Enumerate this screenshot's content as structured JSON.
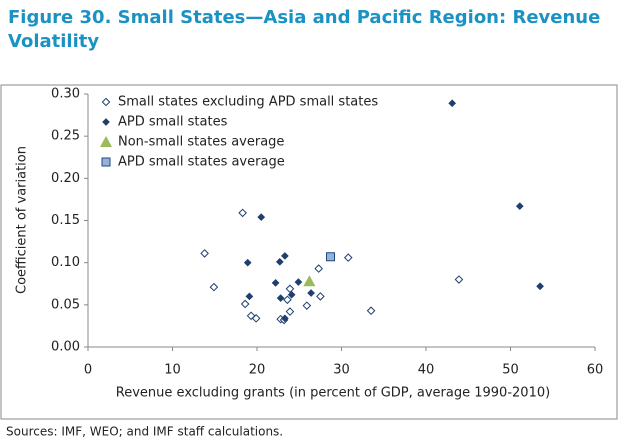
{
  "chart_data": {
    "type": "scatter",
    "title": "Figure 30. Small States—Asia and Pacific Region: Revenue Volatility",
    "x_label": "Revenue excluding grants (in percent of GDP, average 1990-2010)",
    "y_label": "Coefficient of variation",
    "xlim": [
      0,
      60
    ],
    "xticks": [
      0,
      10,
      20,
      30,
      40,
      50,
      60
    ],
    "ylim": [
      0,
      0.3
    ],
    "yticks": [
      {
        "value": 0,
        "label": "0.00"
      },
      {
        "value": 0.05,
        "label": "0.05"
      },
      {
        "value": 0.1,
        "label": "0.10"
      },
      {
        "value": 0.15,
        "label": "0.15"
      },
      {
        "value": 0.2,
        "label": "0.20"
      },
      {
        "value": 0.25,
        "label": "0.25"
      },
      {
        "value": 0.3,
        "label": "0.30"
      }
    ],
    "legend": "upper-left",
    "series": [
      {
        "name": "Small states excluding APD small states",
        "color": "#1f3f6e",
        "marker": "diamond-open",
        "x": [
          13.8,
          14.9,
          18.3,
          18.6,
          19.3,
          19.9,
          22.8,
          23.2,
          23.6,
          23.9,
          23.9,
          25.9,
          27.3,
          27.5,
          30.8,
          33.5,
          43.9
        ],
        "values": [
          0.111,
          0.071,
          0.159,
          0.051,
          0.037,
          0.034,
          0.033,
          0.032,
          0.056,
          0.042,
          0.069,
          0.049,
          0.093,
          0.06,
          0.106,
          0.043,
          0.08
        ]
      },
      {
        "name": "APD small states",
        "color": "#1f3f6e",
        "marker": "diamond",
        "x": [
          43.1,
          51.1,
          53.5,
          20.5,
          18.9,
          19.1,
          22.2,
          22.7,
          23.3,
          22.8,
          23.3,
          24.1,
          24.9,
          26.4
        ],
        "values": [
          0.289,
          0.167,
          0.072,
          0.154,
          0.1,
          0.06,
          0.076,
          0.101,
          0.108,
          0.058,
          0.034,
          0.062,
          0.077,
          0.064
        ]
      },
      {
        "name": "Non-small states average",
        "color": "#9bbb59",
        "marker": "triangle",
        "x": [
          26.2
        ],
        "values": [
          0.078
        ]
      },
      {
        "name": "APD small states average",
        "color": "#95b3d7",
        "marker": "square",
        "x": [
          28.7
        ],
        "values": [
          0.107
        ]
      }
    ]
  },
  "source": "Sources: IMF, WEO; and IMF staff calculations."
}
